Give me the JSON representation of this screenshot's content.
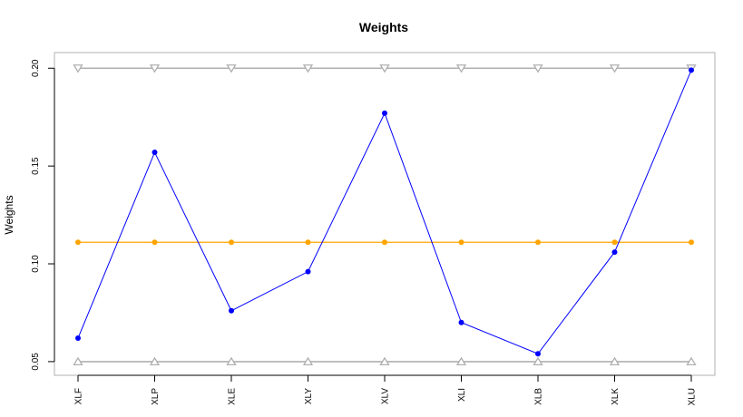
{
  "chart_data": {
    "type": "line",
    "title": "Weights",
    "xlabel": "",
    "ylabel": "Weights",
    "categories": [
      "XLF",
      "XLP",
      "XLE",
      "XLY",
      "XLV",
      "XLI",
      "XLB",
      "XLK",
      "XLU"
    ],
    "yticks": [
      "0.05",
      "0.10",
      "0.15",
      "0.20"
    ],
    "ylim": [
      0.043,
      0.208
    ],
    "grid": false,
    "series": [
      {
        "values": [
          0.062,
          0.157,
          0.076,
          0.096,
          0.177,
          0.07,
          0.054,
          0.106,
          0.199
        ],
        "color": "#0000ff",
        "marker": "circle"
      },
      {
        "values": [
          0.111,
          0.111,
          0.111,
          0.111,
          0.111,
          0.111,
          0.111,
          0.111,
          0.111
        ],
        "color": "#ffa500",
        "marker": "circle"
      },
      {
        "values": [
          0.2,
          0.2,
          0.2,
          0.2,
          0.2,
          0.2,
          0.2,
          0.2,
          0.2
        ],
        "color": "#b0b0b0",
        "marker": "triangle-down"
      },
      {
        "values": [
          0.05,
          0.05,
          0.05,
          0.05,
          0.05,
          0.05,
          0.05,
          0.05,
          0.05
        ],
        "color": "#b0b0b0",
        "marker": "triangle-up"
      }
    ]
  }
}
